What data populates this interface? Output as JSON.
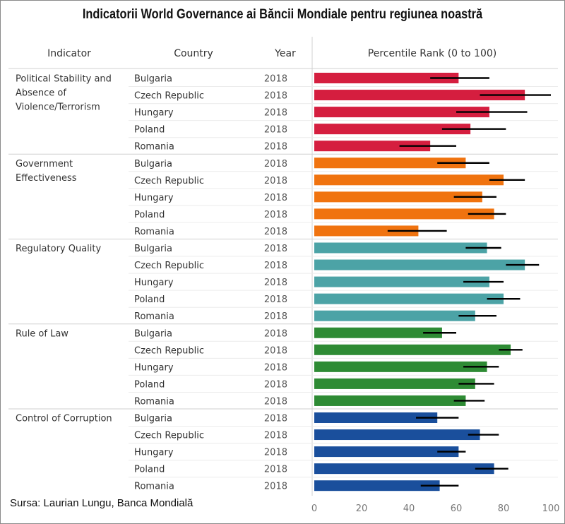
{
  "title": "Indicatorii World Governance ai Băncii Mondiale pentru regiunea noastră",
  "source": "Sursa: Laurian Lungu, Banca Mondială",
  "colors": {
    "political_stability": "#d51e3f",
    "government_effectiveness": "#f0730f",
    "regulatory_quality": "#4ca3a6",
    "rule_of_law": "#2e8b34",
    "control_of_corruption": "#1a4f9c",
    "error_bar": "#000000"
  },
  "chart_data": {
    "type": "bar",
    "orientation": "horizontal",
    "headers": {
      "indicator": "Indicator",
      "country": "Country",
      "year": "Year",
      "value": "Percentile Rank (0 to 100)"
    },
    "xlim": [
      0,
      100
    ],
    "xticks": [
      0,
      20,
      40,
      60,
      80,
      100
    ],
    "grid": false,
    "groups": [
      {
        "key": "political_stability",
        "label_lines": [
          "Political Stability and",
          "Absence of",
          "Violence/Terrorism"
        ],
        "rows": [
          {
            "country": "Bulgaria",
            "year": "2018",
            "value": 61,
            "err": [
              49,
              74
            ]
          },
          {
            "country": "Czech Republic",
            "year": "2018",
            "value": 89,
            "err": [
              70,
              100
            ]
          },
          {
            "country": "Hungary",
            "year": "2018",
            "value": 74,
            "err": [
              60,
              90
            ]
          },
          {
            "country": "Poland",
            "year": "2018",
            "value": 66,
            "err": [
              54,
              81
            ]
          },
          {
            "country": "Romania",
            "year": "2018",
            "value": 49,
            "err": [
              36,
              60
            ]
          }
        ]
      },
      {
        "key": "government_effectiveness",
        "label_lines": [
          "Government",
          "Effectiveness"
        ],
        "rows": [
          {
            "country": "Bulgaria",
            "year": "2018",
            "value": 64,
            "err": [
              52,
              74
            ]
          },
          {
            "country": "Czech Republic",
            "year": "2018",
            "value": 80,
            "err": [
              74,
              89
            ]
          },
          {
            "country": "Hungary",
            "year": "2018",
            "value": 71,
            "err": [
              59,
              77
            ]
          },
          {
            "country": "Poland",
            "year": "2018",
            "value": 76,
            "err": [
              65,
              81
            ]
          },
          {
            "country": "Romania",
            "year": "2018",
            "value": 44,
            "err": [
              31,
              56
            ]
          }
        ]
      },
      {
        "key": "regulatory_quality",
        "label_lines": [
          "Regulatory Quality"
        ],
        "rows": [
          {
            "country": "Bulgaria",
            "year": "2018",
            "value": 73,
            "err": [
              64,
              79
            ]
          },
          {
            "country": "Czech Republic",
            "year": "2018",
            "value": 89,
            "err": [
              81,
              95
            ]
          },
          {
            "country": "Hungary",
            "year": "2018",
            "value": 74,
            "err": [
              63,
              80
            ]
          },
          {
            "country": "Poland",
            "year": "2018",
            "value": 80,
            "err": [
              73,
              87
            ]
          },
          {
            "country": "Romania",
            "year": "2018",
            "value": 68,
            "err": [
              61,
              77
            ]
          }
        ]
      },
      {
        "key": "rule_of_law",
        "label_lines": [
          "Rule of Law"
        ],
        "rows": [
          {
            "country": "Bulgaria",
            "year": "2018",
            "value": 54,
            "err": [
              46,
              60
            ]
          },
          {
            "country": "Czech Republic",
            "year": "2018",
            "value": 83,
            "err": [
              78,
              88
            ]
          },
          {
            "country": "Hungary",
            "year": "2018",
            "value": 73,
            "err": [
              63,
              78
            ]
          },
          {
            "country": "Poland",
            "year": "2018",
            "value": 68,
            "err": [
              61,
              76
            ]
          },
          {
            "country": "Romania",
            "year": "2018",
            "value": 64,
            "err": [
              59,
              72
            ]
          }
        ]
      },
      {
        "key": "control_of_corruption",
        "label_lines": [
          "Control of Corruption"
        ],
        "rows": [
          {
            "country": "Bulgaria",
            "year": "2018",
            "value": 52,
            "err": [
              43,
              61
            ]
          },
          {
            "country": "Czech Republic",
            "year": "2018",
            "value": 70,
            "err": [
              65,
              78
            ]
          },
          {
            "country": "Hungary",
            "year": "2018",
            "value": 61,
            "err": [
              52,
              64
            ]
          },
          {
            "country": "Poland",
            "year": "2018",
            "value": 76,
            "err": [
              68,
              82
            ]
          },
          {
            "country": "Romania",
            "year": "2018",
            "value": 53,
            "err": [
              45,
              61
            ]
          }
        ]
      }
    ]
  }
}
